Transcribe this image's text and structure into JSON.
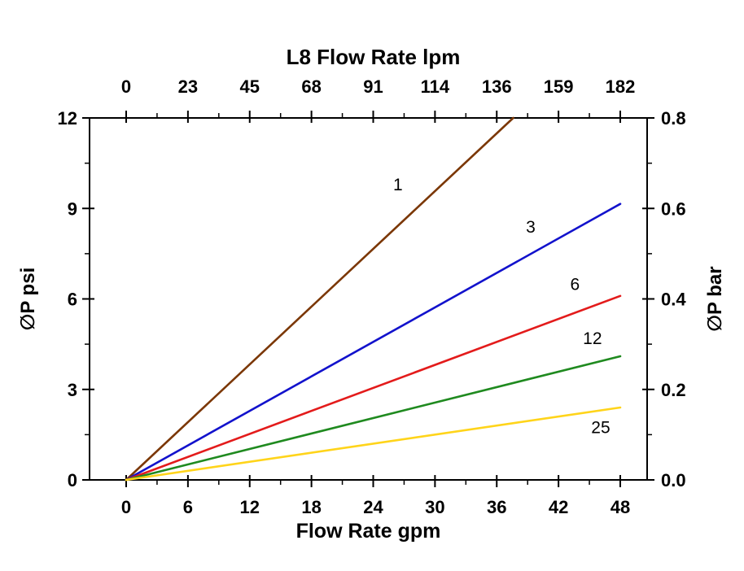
{
  "chart_data": {
    "type": "line",
    "title": "L8 Flow Rate lpm",
    "xlabel": "Flow Rate gpm",
    "ylabel_left": "∅P psi",
    "ylabel_right": "∅P bar",
    "xlim": [
      0,
      48
    ],
    "ylim_psi": [
      0,
      12
    ],
    "ylim_bar": [
      0.0,
      0.8
    ],
    "x_ticks_gpm": [
      "0",
      "6",
      "12",
      "18",
      "24",
      "30",
      "36",
      "42",
      "48"
    ],
    "x_ticks_lpm": [
      "0",
      "23",
      "45",
      "68",
      "91",
      "114",
      "136",
      "159",
      "182"
    ],
    "y_ticks_psi": [
      "0",
      "3",
      "6",
      "9",
      "12"
    ],
    "y_ticks_bar": [
      "0.0",
      "0.2",
      "0.4",
      "0.6",
      "0.8"
    ],
    "grid": false,
    "legend_position": "inline-curve-labels",
    "axis_color": "#000000",
    "background_color": "#ffffff",
    "series": [
      {
        "name": "1",
        "color": "#7B3705",
        "points": [
          [
            0,
            0
          ],
          [
            37.6,
            12
          ]
        ],
        "label_pos": [
          26.4,
          9.6
        ]
      },
      {
        "name": "3",
        "color": "#1212CC",
        "points": [
          [
            0,
            0
          ],
          [
            48,
            9.15
          ]
        ],
        "label_pos": [
          39.3,
          8.2
        ]
      },
      {
        "name": "6",
        "color": "#E31B1B",
        "points": [
          [
            0,
            0
          ],
          [
            48,
            6.1
          ]
        ],
        "label_pos": [
          43.6,
          6.3
        ]
      },
      {
        "name": "12",
        "color": "#1F8A1F",
        "points": [
          [
            0,
            0
          ],
          [
            48,
            4.1
          ]
        ],
        "label_pos": [
          45.3,
          4.5
        ]
      },
      {
        "name": "25",
        "color": "#FFD41A",
        "points": [
          [
            0,
            0
          ],
          [
            48,
            2.4
          ]
        ],
        "label_pos": [
          46.1,
          1.55
        ]
      }
    ]
  }
}
